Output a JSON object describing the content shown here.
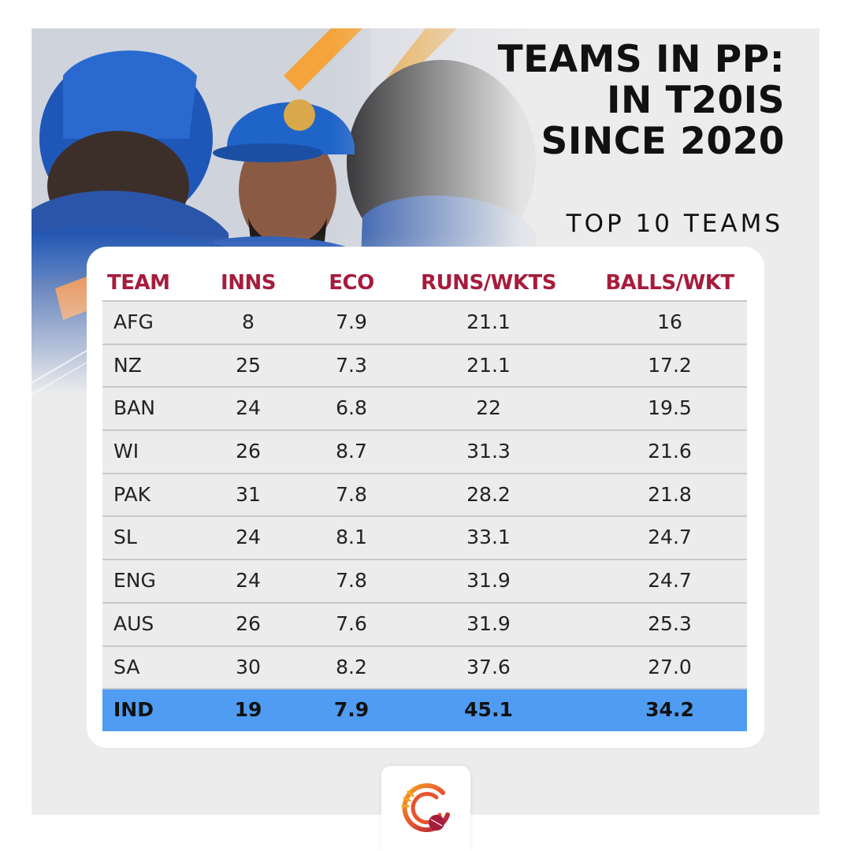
{
  "title_lines": [
    "TEAMS IN PP:",
    "IN T20IS",
    "SINCE 2020"
  ],
  "subtitle": "TOP 10 TEAMS",
  "colors": {
    "header_text": "#a61c3c",
    "highlight_row": "#4f9cf2",
    "row_bg": "#ececed",
    "frame_bg": "#ececed"
  },
  "icons": {
    "brand_logo": "cricket-ball-logo-icon"
  },
  "chart_data": {
    "type": "table",
    "columns": [
      "TEAM",
      "INNS",
      "ECO",
      "RUNS/WKTS",
      "BALLS/WKT"
    ],
    "rows": [
      {
        "team": "AFG",
        "inns": "8",
        "eco": "7.9",
        "runs_wkts": "21.1",
        "balls_wkt": "16"
      },
      {
        "team": "NZ",
        "inns": "25",
        "eco": "7.3",
        "runs_wkts": "21.1",
        "balls_wkt": "17.2"
      },
      {
        "team": "BAN",
        "inns": "24",
        "eco": "6.8",
        "runs_wkts": "22",
        "balls_wkt": "19.5"
      },
      {
        "team": "WI",
        "inns": "26",
        "eco": "8.7",
        "runs_wkts": "31.3",
        "balls_wkt": "21.6"
      },
      {
        "team": "PAK",
        "inns": "31",
        "eco": "7.8",
        "runs_wkts": "28.2",
        "balls_wkt": "21.8"
      },
      {
        "team": "SL",
        "inns": "24",
        "eco": "8.1",
        "runs_wkts": "33.1",
        "balls_wkt": "24.7"
      },
      {
        "team": "ENG",
        "inns": "24",
        "eco": "7.8",
        "runs_wkts": "31.9",
        "balls_wkt": "24.7"
      },
      {
        "team": "AUS",
        "inns": "26",
        "eco": "7.6",
        "runs_wkts": "31.9",
        "balls_wkt": "25.3"
      },
      {
        "team": "SA",
        "inns": "30",
        "eco": "8.2",
        "runs_wkts": "37.6",
        "balls_wkt": "27.0"
      },
      {
        "team": "IND",
        "inns": "19",
        "eco": "7.9",
        "runs_wkts": "45.1",
        "balls_wkt": "34.2",
        "highlighted": true
      }
    ]
  }
}
